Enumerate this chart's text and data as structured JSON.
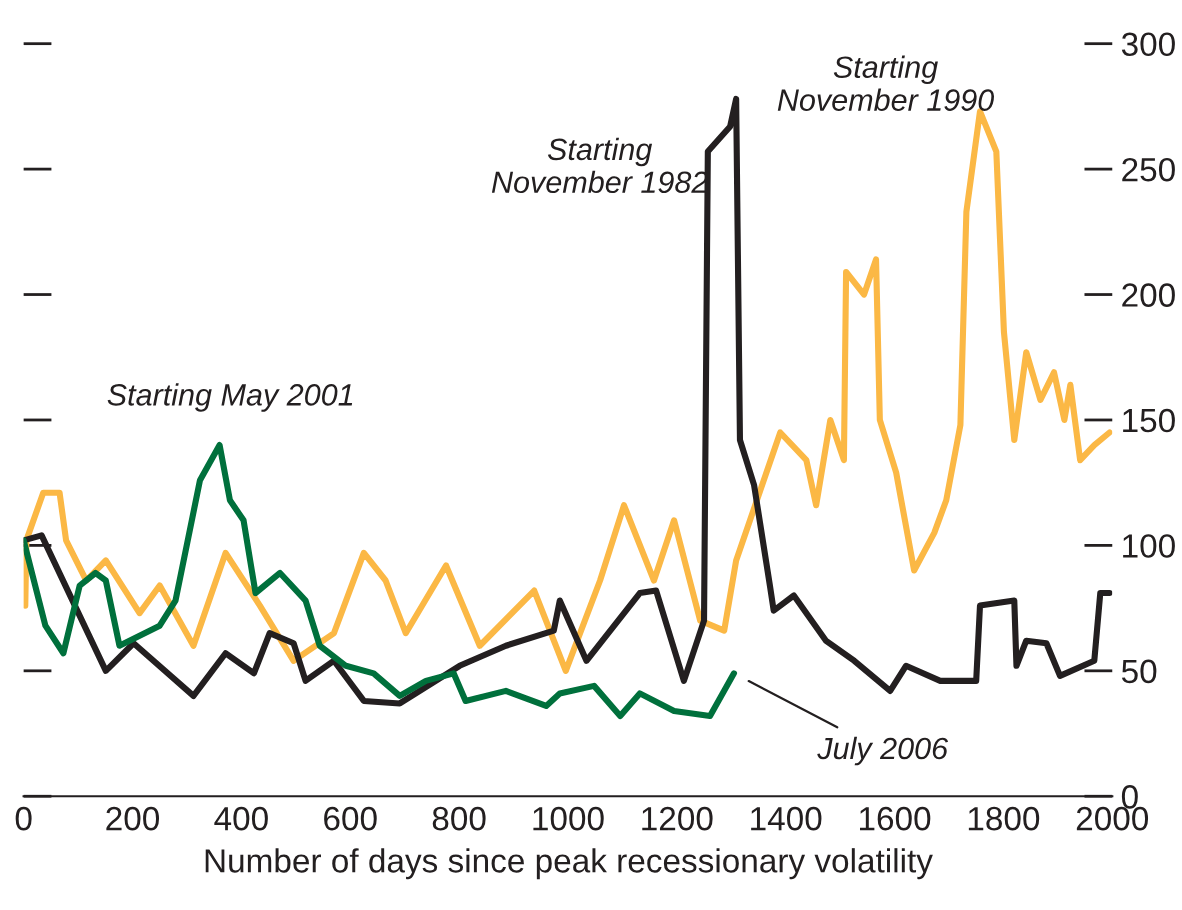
{
  "chart_data": {
    "type": "line",
    "xlabel": "Number of days since peak recessionary volatility",
    "xlim": [
      0,
      2000
    ],
    "xticks": [
      0,
      200,
      400,
      600,
      800,
      1000,
      1200,
      1400,
      1600,
      1800,
      2000
    ],
    "ylim": [
      0,
      300
    ],
    "yticks": [
      0,
      50,
      100,
      150,
      200,
      250,
      300
    ],
    "grid": false,
    "legend": false,
    "line_style": "solid",
    "marker": "none",
    "annotations": [
      {
        "text": "July 2006",
        "x": 1305,
        "y": 49
      }
    ],
    "series": [
      {
        "name": "Starting\nNovember 1990",
        "color": "#fbb845",
        "x": [
          3,
          5,
          36,
          66,
          78,
          115,
          151,
          213,
          250,
          312,
          371,
          434,
          496,
          570,
          625,
          665,
          702,
          776,
          838,
          938,
          996,
          1059,
          1103,
          1158,
          1195,
          1243,
          1287,
          1309,
          1390,
          1438,
          1456,
          1482,
          1507,
          1511,
          1544,
          1566,
          1573,
          1603,
          1636,
          1673,
          1695,
          1721,
          1732,
          1757,
          1787,
          1801,
          1820,
          1842,
          1868,
          1893,
          1912,
          1923,
          1941,
          1967,
          1995
        ],
        "values": [
          76,
          102,
          121,
          121,
          102,
          86,
          94,
          73,
          84,
          60,
          97,
          76,
          54,
          65,
          97,
          86,
          65,
          92,
          60,
          82,
          50,
          86,
          116,
          86,
          110,
          70,
          66,
          94,
          145,
          134,
          116,
          150,
          134,
          209,
          200,
          214,
          150,
          129,
          90,
          105,
          118,
          148,
          233,
          273,
          257,
          185,
          142,
          177,
          158,
          169,
          150,
          164,
          134,
          140,
          145
        ]
      },
      {
        "name": "Starting\nNovember 1982",
        "color": "#231f20",
        "x": [
          0,
          33,
          151,
          202,
          312,
          371,
          423,
          452,
          496,
          518,
          570,
          625,
          691,
          801,
          886,
          974,
          985,
          1034,
          1132,
          1162,
          1213,
          1250,
          1257,
          1298,
          1309,
          1316,
          1342,
          1371,
          1378,
          1415,
          1474,
          1526,
          1592,
          1621,
          1684,
          1750,
          1757,
          1820,
          1824,
          1842,
          1879,
          1904,
          1967,
          1978,
          1995
        ],
        "values": [
          102,
          104,
          50,
          61,
          40,
          57,
          49,
          65,
          61,
          46,
          54,
          38,
          37,
          52,
          60,
          66,
          78,
          54,
          81,
          82,
          46,
          70,
          257,
          267,
          278,
          142,
          124,
          84,
          74,
          80,
          62,
          54,
          42,
          52,
          46,
          46,
          76,
          78,
          52,
          62,
          61,
          48,
          54,
          81,
          81
        ]
      },
      {
        "name": "Starting May 2001",
        "color": "#00703c",
        "x": [
          0,
          40,
          73,
          103,
          132,
          151,
          176,
          250,
          279,
          324,
          360,
          379,
          404,
          426,
          471,
          518,
          544,
          592,
          643,
          691,
          739,
          790,
          812,
          886,
          960,
          985,
          1048,
          1096,
          1132,
          1195,
          1261,
          1305
        ],
        "values": [
          102,
          68,
          57,
          84,
          89,
          86,
          60,
          68,
          78,
          126,
          140,
          118,
          110,
          81,
          89,
          78,
          60,
          52,
          49,
          40,
          46,
          49,
          38,
          42,
          36,
          41,
          44,
          32,
          41,
          34,
          32,
          49
        ]
      }
    ]
  }
}
